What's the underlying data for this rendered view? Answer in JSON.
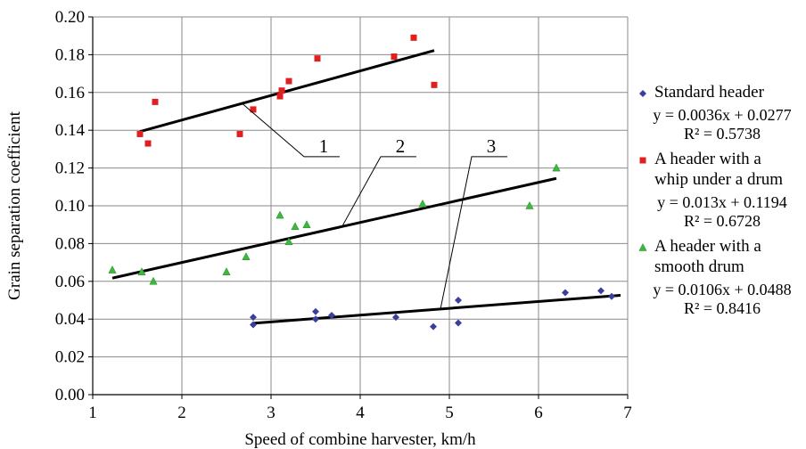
{
  "chart_data": {
    "type": "scatter",
    "xlabel": "Speed of combine harvester, km/h",
    "ylabel": "Grain separation coefficient",
    "xlim": [
      1,
      7
    ],
    "ylim": [
      0,
      0.2
    ],
    "x_ticks": [
      "1",
      "2",
      "3",
      "4",
      "5",
      "6",
      "7"
    ],
    "y_ticks": [
      "0.00",
      "0.02",
      "0.04",
      "0.06",
      "0.08",
      "0.10",
      "0.12",
      "0.14",
      "0.16",
      "0.18",
      "0.20"
    ],
    "grid": true,
    "legend_position": "right",
    "series": [
      {
        "name": "Standard header",
        "marker": "diamond",
        "color": "#3b3f9c",
        "equation": "y = 0.0036x + 0.0277",
        "r2": "R² = 0.5738",
        "points": [
          [
            2.8,
            0.041
          ],
          [
            2.8,
            0.037
          ],
          [
            3.5,
            0.044
          ],
          [
            3.5,
            0.04
          ],
          [
            3.68,
            0.042
          ],
          [
            4.4,
            0.041
          ],
          [
            4.82,
            0.036
          ],
          [
            5.1,
            0.05
          ],
          [
            5.1,
            0.038
          ],
          [
            6.3,
            0.054
          ],
          [
            6.7,
            0.055
          ],
          [
            6.82,
            0.052
          ]
        ],
        "trendline": [
          [
            2.8,
            0.0378
          ],
          [
            6.92,
            0.0526
          ]
        ]
      },
      {
        "name": "A header with a\nwhip under a drum",
        "marker": "square",
        "color": "#e02020",
        "equation": "y = 0.013x + 0.1194",
        "r2": "R² = 0.6728",
        "points": [
          [
            1.53,
            0.138
          ],
          [
            1.62,
            0.133
          ],
          [
            1.7,
            0.155
          ],
          [
            2.65,
            0.138
          ],
          [
            2.8,
            0.151
          ],
          [
            3.1,
            0.158
          ],
          [
            3.12,
            0.161
          ],
          [
            3.2,
            0.166
          ],
          [
            3.52,
            0.178
          ],
          [
            4.38,
            0.179
          ],
          [
            4.6,
            0.189
          ],
          [
            4.83,
            0.164
          ]
        ],
        "trendline": [
          [
            1.53,
            0.1393
          ],
          [
            4.83,
            0.1822
          ]
        ]
      },
      {
        "name": "A header with a\nsmooth drum",
        "marker": "triangle",
        "color": "#3cb83c",
        "equation": "y = 0.0106x + 0.0488",
        "r2": "R² = 0.8416",
        "points": [
          [
            1.22,
            0.066
          ],
          [
            1.55,
            0.065
          ],
          [
            1.68,
            0.06
          ],
          [
            2.5,
            0.065
          ],
          [
            2.72,
            0.073
          ],
          [
            3.1,
            0.095
          ],
          [
            3.2,
            0.081
          ],
          [
            3.27,
            0.089
          ],
          [
            3.4,
            0.09
          ],
          [
            4.7,
            0.101
          ],
          [
            5.9,
            0.1
          ],
          [
            6.2,
            0.12
          ]
        ],
        "trendline": [
          [
            1.22,
            0.0617
          ],
          [
            6.2,
            0.1145
          ]
        ]
      }
    ],
    "annotations": [
      {
        "label": "1",
        "pointer": [
          2.68,
          0.154
        ],
        "text_at": [
          3.47,
          0.126
        ]
      },
      {
        "label": "2",
        "pointer": [
          3.8,
          0.0893
        ],
        "text_at": [
          4.33,
          0.126
        ]
      },
      {
        "label": "3",
        "pointer": [
          4.9,
          0.0453
        ],
        "text_at": [
          5.35,
          0.126
        ]
      }
    ]
  }
}
